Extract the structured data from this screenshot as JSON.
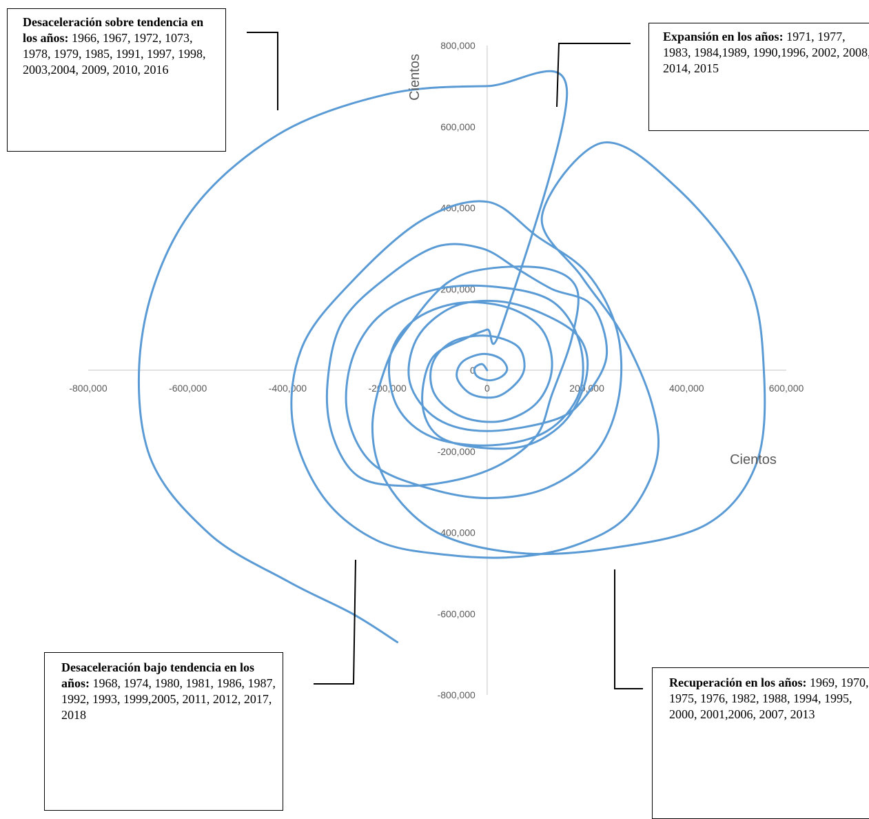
{
  "chart_data": {
    "type": "line",
    "xlabel": "Cientos",
    "ylabel": "Cientos",
    "xlim": [
      -800000,
      600000
    ],
    "ylim": [
      -800000,
      800000
    ],
    "x_ticks": [
      "-800,000",
      "-600,000",
      "-400,000",
      "-200,000",
      "0",
      "200,000",
      "400,000",
      "600,000"
    ],
    "y_ticks": [
      "800,000",
      "600,000",
      "400,000",
      "200,000",
      "0",
      "-200,000",
      "-400,000",
      "-600,000",
      "-800,000"
    ],
    "series": [
      {
        "points": [
          [
            0,
            0
          ],
          [
            -10000,
            15000
          ],
          [
            -25000,
            5000
          ],
          [
            -20000,
            -15000
          ],
          [
            5000,
            -25000
          ],
          [
            30000,
            -15000
          ],
          [
            40000,
            5000
          ],
          [
            25000,
            30000
          ],
          [
            -10000,
            40000
          ],
          [
            -50000,
            20000
          ],
          [
            -60000,
            -20000
          ],
          [
            -30000,
            -60000
          ],
          [
            20000,
            -65000
          ],
          [
            60000,
            -30000
          ],
          [
            75000,
            10000
          ],
          [
            60000,
            60000
          ],
          [
            0,
            85000
          ],
          [
            -70000,
            70000
          ],
          [
            -110000,
            15000
          ],
          [
            -105000,
            -60000
          ],
          [
            -50000,
            -115000
          ],
          [
            30000,
            -125000
          ],
          [
            100000,
            -80000
          ],
          [
            130000,
            5000
          ],
          [
            110000,
            100000
          ],
          [
            40000,
            155000
          ],
          [
            -60000,
            165000
          ],
          [
            -150000,
            120000
          ],
          [
            -195000,
            30000
          ],
          [
            -180000,
            -90000
          ],
          [
            -110000,
            -165000
          ],
          [
            10000,
            -185000
          ],
          [
            120000,
            -150000
          ],
          [
            185000,
            -55000
          ],
          [
            185000,
            70000
          ],
          [
            130000,
            170000
          ],
          [
            20000,
            205000
          ],
          [
            -100000,
            200000
          ],
          [
            -210000,
            140000
          ],
          [
            -270000,
            30000
          ],
          [
            -280000,
            -110000
          ],
          [
            -230000,
            -230000
          ],
          [
            -120000,
            -290000
          ],
          [
            0,
            -315000
          ],
          [
            120000,
            -290000
          ],
          [
            220000,
            -200000
          ],
          [
            265000,
            -60000
          ],
          [
            260000,
            100000
          ],
          [
            200000,
            240000
          ],
          [
            100000,
            330000
          ],
          [
            0,
            415000
          ],
          [
            -130000,
            370000
          ],
          [
            -270000,
            220000
          ],
          [
            -370000,
            60000
          ],
          [
            -390000,
            -130000
          ],
          [
            -330000,
            -310000
          ],
          [
            -220000,
            -420000
          ],
          [
            -80000,
            -455000
          ],
          [
            60000,
            -460000
          ],
          [
            180000,
            -430000
          ],
          [
            280000,
            -360000
          ],
          [
            340000,
            -220000
          ],
          [
            330000,
            -80000
          ],
          [
            270000,
            90000
          ],
          [
            190000,
            230000
          ],
          [
            110000,
            380000
          ],
          [
            230000,
            560000
          ],
          [
            380000,
            450000
          ],
          [
            520000,
            230000
          ],
          [
            555000,
            0
          ],
          [
            540000,
            -230000
          ],
          [
            440000,
            -380000
          ],
          [
            240000,
            -440000
          ],
          [
            60000,
            -450000
          ],
          [
            -100000,
            -400000
          ],
          [
            -200000,
            -280000
          ],
          [
            -230000,
            -140000
          ],
          [
            -200000,
            20000
          ],
          [
            -150000,
            120000
          ],
          [
            -80000,
            215000
          ],
          [
            0,
            250000
          ],
          [
            120000,
            250000
          ],
          [
            180000,
            200000
          ],
          [
            170000,
            80000
          ],
          [
            130000,
            -60000
          ],
          [
            100000,
            -160000
          ],
          [
            30000,
            -230000
          ],
          [
            -60000,
            -270000
          ],
          [
            -170000,
            -285000
          ],
          [
            -260000,
            -260000
          ],
          [
            -310000,
            -160000
          ],
          [
            -320000,
            -30000
          ],
          [
            -290000,
            120000
          ],
          [
            -200000,
            230000
          ],
          [
            -100000,
            305000
          ],
          [
            -10000,
            300000
          ],
          [
            60000,
            250000
          ],
          [
            130000,
            200000
          ],
          [
            210000,
            160000
          ],
          [
            240000,
            40000
          ],
          [
            200000,
            -60000
          ],
          [
            140000,
            -120000
          ],
          [
            0,
            -150000
          ],
          [
            -100000,
            -120000
          ],
          [
            -155000,
            -30000
          ],
          [
            -140000,
            80000
          ],
          [
            -70000,
            155000
          ],
          [
            20000,
            170000
          ],
          [
            110000,
            140000
          ],
          [
            185000,
            80000
          ],
          [
            200000,
            -10000
          ],
          [
            160000,
            -120000
          ],
          [
            80000,
            -185000
          ],
          [
            -20000,
            -190000
          ],
          [
            -100000,
            -160000
          ],
          [
            -130000,
            -80000
          ],
          [
            -110000,
            30000
          ],
          [
            -40000,
            80000
          ],
          [
            0,
            100000
          ],
          [
            30000,
            110000
          ],
          [
            160000,
            690000
          ],
          [
            0,
            700000
          ],
          [
            -200000,
            680000
          ],
          [
            -420000,
            580000
          ],
          [
            -600000,
            380000
          ],
          [
            -690000,
            100000
          ],
          [
            -680000,
            -200000
          ],
          [
            -560000,
            -400000
          ],
          [
            -400000,
            -520000
          ],
          [
            -270000,
            -600000
          ],
          [
            -180000,
            -670000
          ]
        ]
      }
    ],
    "line_color": "#5b9bd5",
    "grid": false
  },
  "annotations": {
    "top_left": {
      "title": "Desaceleración sobre tendencia en los años:",
      "years": "1966, 1967, 1972, 1073, 1978, 1979, 1985, 1991, 1997, 1998, 2003,2004, 2009, 2010, 2016"
    },
    "top_right": {
      "title": "Expansión en los años:",
      "years": "1971, 1977, 1983, 1984,1989, 1990,1996, 2002, 2008, 2014, 2015"
    },
    "bottom_left": {
      "title": "Desaceleración bajo tendencia en los años:",
      "years": "1968, 1974, 1980, 1981, 1986, 1987, 1992, 1993, 1999,2005, 2011, 2012, 2017, 2018"
    },
    "bottom_right": {
      "title": "Recuperación en los años:",
      "years": "1969, 1970, 1975, 1976, 1982, 1988, 1994, 1995, 2000, 2001,2006, 2007, 2013"
    }
  }
}
